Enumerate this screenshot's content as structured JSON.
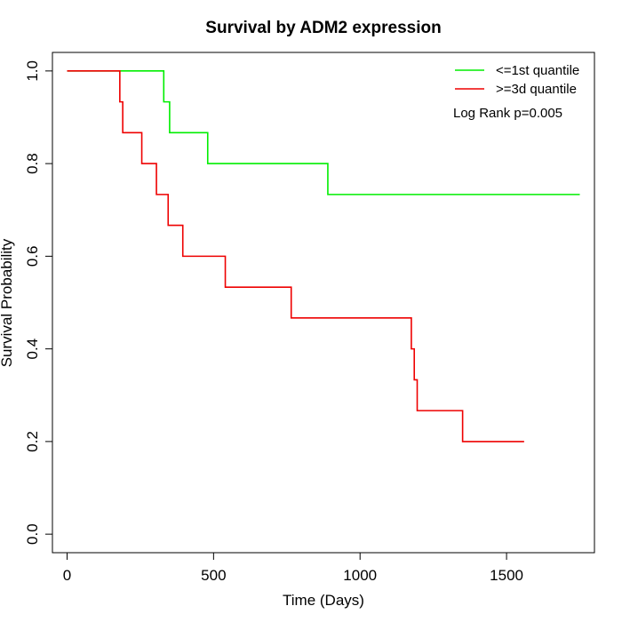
{
  "chart_data": {
    "type": "line",
    "title": "Survival by ADM2 expression",
    "xlabel": "Time (Days)",
    "ylabel": "Survival Probability",
    "xlim": [
      -50,
      1800
    ],
    "ylim": [
      -0.04,
      1.04
    ],
    "x_ticks": [
      0,
      500,
      1000,
      1500
    ],
    "x_tick_labels": [
      "0",
      "500",
      "1000",
      "1500"
    ],
    "y_ticks": [
      0.0,
      0.2,
      0.4,
      0.6,
      0.8,
      1.0
    ],
    "y_tick_labels": [
      "0.0",
      "0.2",
      "0.4",
      "0.6",
      "0.8",
      "1.0"
    ],
    "grid": false,
    "legend_position": "top-right",
    "annotation": "Log Rank p=0.005",
    "series": [
      {
        "name": "<=1st quantile",
        "color": "#00ee00",
        "steps": [
          {
            "x": 0,
            "y": 1.0
          },
          {
            "x": 330,
            "y": 0.9333
          },
          {
            "x": 350,
            "y": 0.8667
          },
          {
            "x": 480,
            "y": 0.8
          },
          {
            "x": 890,
            "y": 0.7333
          }
        ],
        "end_x": 1750
      },
      {
        "name": ">=3d quantile",
        "color": "#ee0000",
        "steps": [
          {
            "x": 0,
            "y": 1.0
          },
          {
            "x": 180,
            "y": 0.9333
          },
          {
            "x": 190,
            "y": 0.8667
          },
          {
            "x": 255,
            "y": 0.8
          },
          {
            "x": 305,
            "y": 0.7333
          },
          {
            "x": 345,
            "y": 0.6667
          },
          {
            "x": 395,
            "y": 0.6
          },
          {
            "x": 540,
            "y": 0.5333
          },
          {
            "x": 765,
            "y": 0.4667
          },
          {
            "x": 1175,
            "y": 0.4
          },
          {
            "x": 1185,
            "y": 0.3333
          },
          {
            "x": 1195,
            "y": 0.2667
          },
          {
            "x": 1350,
            "y": 0.2
          }
        ],
        "end_x": 1560
      }
    ]
  }
}
